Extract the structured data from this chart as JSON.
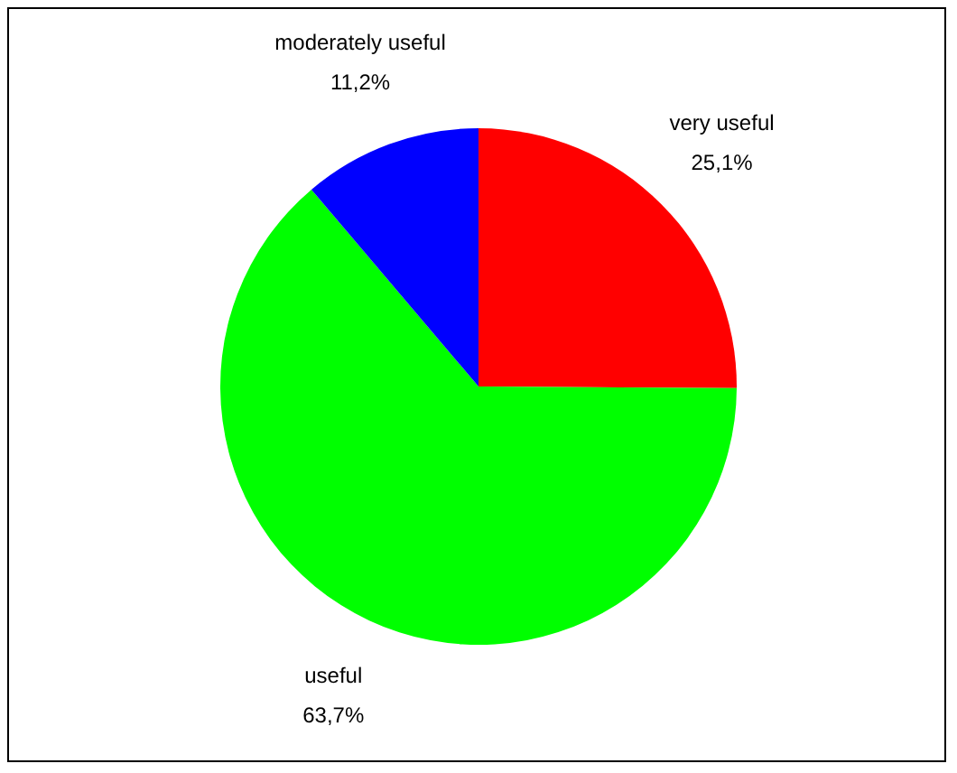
{
  "chart_data": {
    "type": "pie",
    "categories": [
      "very useful",
      "useful",
      "moderately useful"
    ],
    "values": [
      25.1,
      63.7,
      11.2
    ],
    "colors": [
      "#ff0000",
      "#00ff00",
      "#0000ff"
    ],
    "value_labels": [
      "25,1%",
      "63,7%",
      "11,2%"
    ]
  }
}
